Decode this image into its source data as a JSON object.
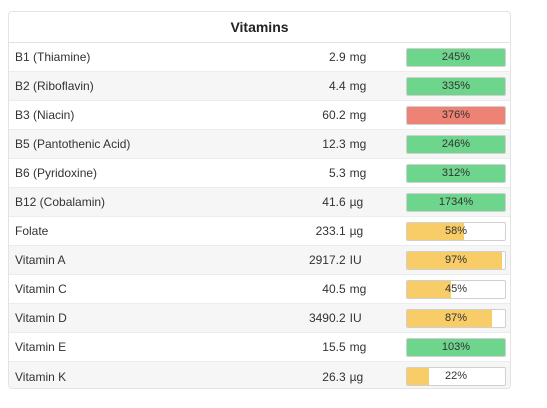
{
  "panel": {
    "title": "Vitamins"
  },
  "colors": {
    "adequate": "#6dd58c",
    "excess": "#ee8274",
    "partial": "#f8cc66"
  },
  "rows": [
    {
      "name": "B1 (Thiamine)",
      "amount": "2.9",
      "unit": "mg",
      "percent_label": "245%",
      "fill_fraction": 1.0,
      "status": "adequate"
    },
    {
      "name": "B2 (Riboflavin)",
      "amount": "4.4",
      "unit": "mg",
      "percent_label": "335%",
      "fill_fraction": 1.0,
      "status": "adequate"
    },
    {
      "name": "B3 (Niacin)",
      "amount": "60.2",
      "unit": "mg",
      "percent_label": "376%",
      "fill_fraction": 1.0,
      "status": "excess"
    },
    {
      "name": "B5 (Pantothenic Acid)",
      "amount": "12.3",
      "unit": "mg",
      "percent_label": "246%",
      "fill_fraction": 1.0,
      "status": "adequate"
    },
    {
      "name": "B6 (Pyridoxine)",
      "amount": "5.3",
      "unit": "mg",
      "percent_label": "312%",
      "fill_fraction": 1.0,
      "status": "adequate"
    },
    {
      "name": "B12 (Cobalamin)",
      "amount": "41.6",
      "unit": "µg",
      "percent_label": "1734%",
      "fill_fraction": 1.0,
      "status": "adequate"
    },
    {
      "name": "Folate",
      "amount": "233.1",
      "unit": "µg",
      "percent_label": "58%",
      "fill_fraction": 0.58,
      "status": "partial"
    },
    {
      "name": "Vitamin A",
      "amount": "2917.2",
      "unit": "IU",
      "percent_label": "97%",
      "fill_fraction": 0.97,
      "status": "partial"
    },
    {
      "name": "Vitamin C",
      "amount": "40.5",
      "unit": "mg",
      "percent_label": "45%",
      "fill_fraction": 0.45,
      "status": "partial"
    },
    {
      "name": "Vitamin D",
      "amount": "3490.2",
      "unit": "IU",
      "percent_label": "87%",
      "fill_fraction": 0.87,
      "status": "partial"
    },
    {
      "name": "Vitamin E",
      "amount": "15.5",
      "unit": "mg",
      "percent_label": "103%",
      "fill_fraction": 1.0,
      "status": "adequate"
    },
    {
      "name": "Vitamin K",
      "amount": "26.3",
      "unit": "µg",
      "percent_label": "22%",
      "fill_fraction": 0.22,
      "status": "partial"
    }
  ]
}
